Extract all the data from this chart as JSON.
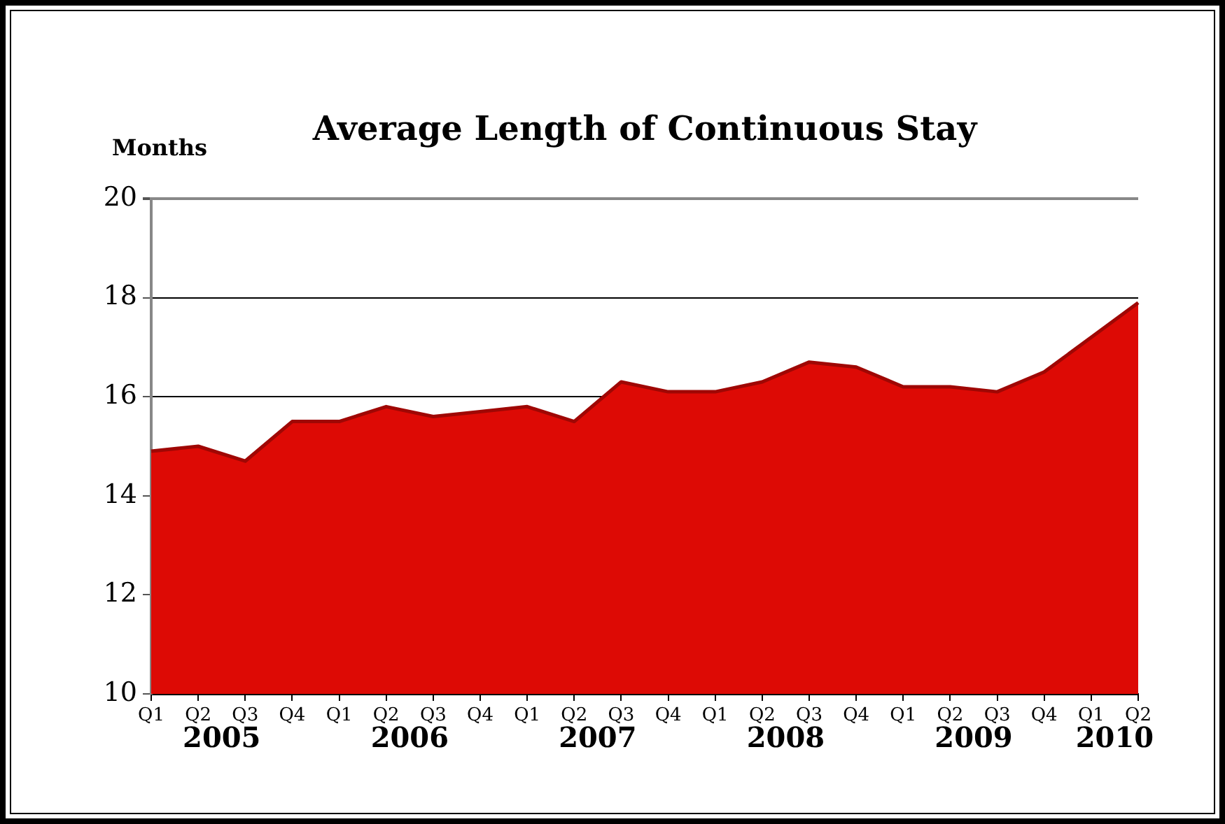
{
  "chart_data": {
    "type": "area",
    "title": "Average Length of Continuous Stay",
    "ylabel": "Months",
    "categories": [
      "Q1",
      "Q2",
      "Q3",
      "Q4",
      "Q1",
      "Q2",
      "Q3",
      "Q4",
      "Q1",
      "Q2",
      "Q3",
      "Q4",
      "Q1",
      "Q2",
      "Q3",
      "Q4",
      "Q1",
      "Q2",
      "Q3",
      "Q4",
      "Q1",
      "Q2"
    ],
    "values": [
      14.9,
      15.0,
      14.7,
      15.5,
      15.5,
      15.8,
      15.6,
      15.7,
      15.8,
      15.5,
      16.3,
      16.1,
      16.1,
      16.3,
      16.7,
      16.6,
      16.2,
      16.2,
      16.1,
      16.5,
      17.2,
      17.9
    ],
    "color": "#dd0a05",
    "ylim": [
      10,
      20
    ],
    "yticks": [
      10,
      12,
      14,
      16,
      18,
      20
    ],
    "grid": "y",
    "annotations": [
      "2005",
      "2006",
      "2007",
      "2008",
      "2009",
      "2010"
    ]
  }
}
